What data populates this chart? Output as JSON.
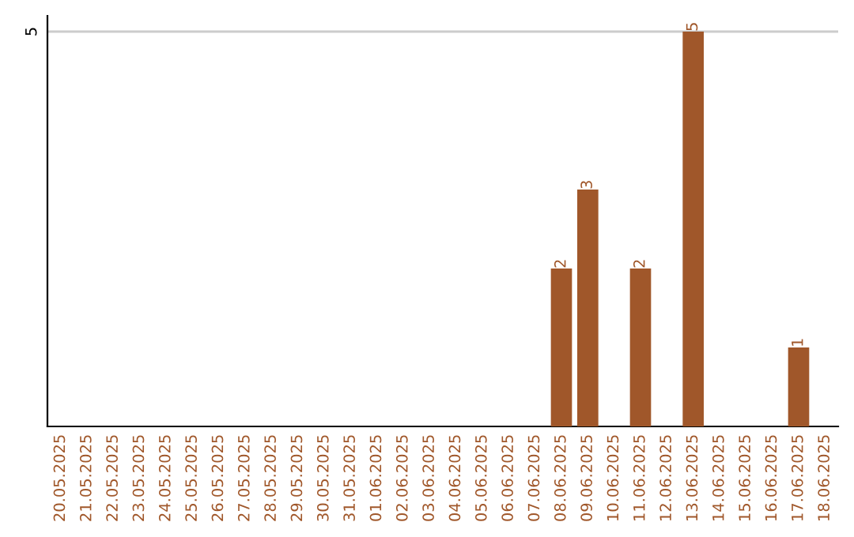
{
  "chart_data": {
    "type": "bar",
    "categories": [
      "20.05.2025",
      "21.05.2025",
      "22.05.2025",
      "23.05.2025",
      "24.05.2025",
      "25.05.2025",
      "26.05.2025",
      "27.05.2025",
      "28.05.2025",
      "29.05.2025",
      "30.05.2025",
      "31.05.2025",
      "01.06.2025",
      "02.06.2025",
      "03.06.2025",
      "04.06.2025",
      "05.06.2025",
      "06.06.2025",
      "07.06.2025",
      "08.06.2025",
      "09.06.2025",
      "10.06.2025",
      "11.06.2025",
      "12.06.2025",
      "13.06.2025",
      "14.06.2025",
      "15.06.2025",
      "16.06.2025",
      "17.06.2025",
      "18.06.2025"
    ],
    "values": [
      null,
      null,
      null,
      null,
      null,
      null,
      null,
      null,
      null,
      null,
      null,
      null,
      null,
      null,
      null,
      null,
      null,
      null,
      null,
      2,
      3,
      null,
      2,
      null,
      5,
      null,
      null,
      null,
      1,
      null
    ],
    "data_labels": true,
    "color": "#a0572a",
    "ylim": [
      0,
      5.2
    ],
    "yticks": [
      5
    ],
    "grid": "y"
  }
}
